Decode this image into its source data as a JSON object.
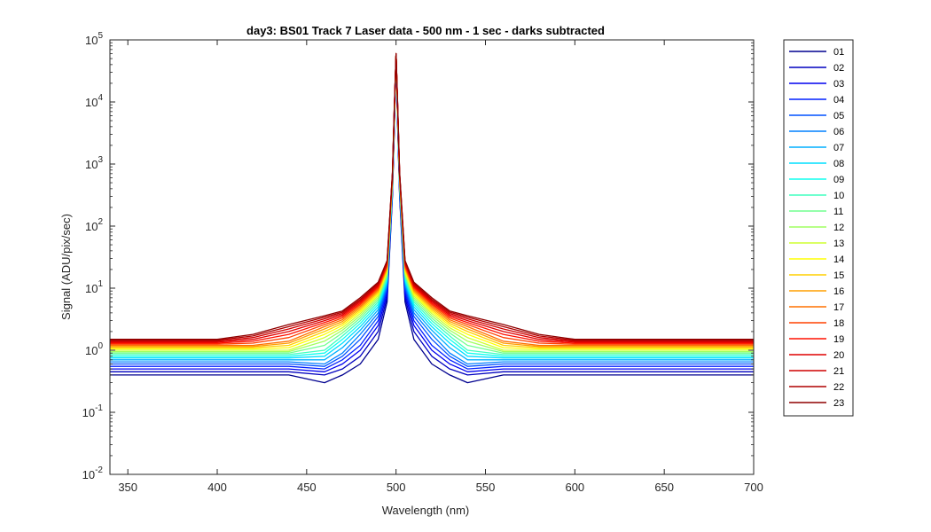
{
  "chart_data": {
    "type": "line",
    "title": "day3: BS01  Track 7 Laser data - 500 nm - 1 sec - darks subtracted",
    "xlabel": "Wavelength (nm)",
    "ylabel": "Signal (ADU/pix/sec)",
    "xlim": [
      340,
      700
    ],
    "ylim": [
      0.01,
      100000
    ],
    "yscale": "log",
    "x_ticks": [
      350,
      400,
      450,
      500,
      550,
      600,
      650,
      700
    ],
    "y_ticks": [
      {
        "value": 0.01,
        "base": "10",
        "exp": "-2"
      },
      {
        "value": 0.1,
        "base": "10",
        "exp": "-1"
      },
      {
        "value": 1,
        "base": "10",
        "exp": "0"
      },
      {
        "value": 10,
        "base": "10",
        "exp": "1"
      },
      {
        "value": 100,
        "base": "10",
        "exp": "2"
      },
      {
        "value": 1000,
        "base": "10",
        "exp": "3"
      },
      {
        "value": 10000,
        "base": "10",
        "exp": "4"
      },
      {
        "value": 100000,
        "base": "10",
        "exp": "5"
      }
    ],
    "grid": false,
    "legend_position": "outside-right",
    "x": [
      340,
      360,
      380,
      400,
      420,
      440,
      460,
      470,
      480,
      490,
      495,
      498,
      499,
      500,
      501,
      502,
      505,
      510,
      520,
      530,
      540,
      560,
      580,
      600,
      620,
      640,
      660,
      680,
      700
    ],
    "series": [
      {
        "name": "01",
        "color": "#00008f",
        "values": [
          0.4,
          0.4,
          0.4,
          0.4,
          0.4,
          0.4,
          0.3,
          0.4,
          0.6,
          1.5,
          6,
          300,
          3000,
          60000,
          3000,
          300,
          6,
          1.5,
          0.6,
          0.4,
          0.3,
          0.4,
          0.4,
          0.4,
          0.4,
          0.4,
          0.4,
          0.4,
          0.4
        ]
      },
      {
        "name": "02",
        "color": "#0000bf",
        "values": [
          0.45,
          0.45,
          0.45,
          0.45,
          0.45,
          0.45,
          0.4,
          0.5,
          0.8,
          2.0,
          7,
          320,
          3200,
          60000,
          3200,
          320,
          7,
          2.0,
          0.8,
          0.5,
          0.4,
          0.45,
          0.45,
          0.45,
          0.45,
          0.45,
          0.45,
          0.45,
          0.45
        ]
      },
      {
        "name": "03",
        "color": "#0000ef",
        "values": [
          0.5,
          0.5,
          0.5,
          0.5,
          0.5,
          0.5,
          0.45,
          0.6,
          1.0,
          2.5,
          8,
          340,
          3400,
          60000,
          3400,
          340,
          8,
          2.5,
          1.0,
          0.6,
          0.45,
          0.5,
          0.5,
          0.5,
          0.5,
          0.5,
          0.5,
          0.5,
          0.5
        ]
      },
      {
        "name": "04",
        "color": "#0020ff",
        "values": [
          0.55,
          0.55,
          0.55,
          0.55,
          0.55,
          0.55,
          0.5,
          0.7,
          1.2,
          3.0,
          9,
          360,
          3600,
          60000,
          3600,
          360,
          9,
          3.0,
          1.2,
          0.7,
          0.5,
          0.55,
          0.55,
          0.55,
          0.55,
          0.55,
          0.55,
          0.55,
          0.55
        ]
      },
      {
        "name": "05",
        "color": "#0050ff",
        "values": [
          0.6,
          0.6,
          0.6,
          0.6,
          0.6,
          0.6,
          0.55,
          0.8,
          1.5,
          3.5,
          10,
          380,
          3800,
          60000,
          3800,
          380,
          10,
          3.5,
          1.5,
          0.8,
          0.55,
          0.6,
          0.6,
          0.6,
          0.6,
          0.6,
          0.6,
          0.6,
          0.6
        ]
      },
      {
        "name": "06",
        "color": "#0080ff",
        "values": [
          0.65,
          0.65,
          0.65,
          0.65,
          0.65,
          0.65,
          0.6,
          0.9,
          1.8,
          4.0,
          11,
          400,
          4000,
          60000,
          4000,
          400,
          11,
          4.0,
          1.8,
          0.9,
          0.6,
          0.65,
          0.65,
          0.65,
          0.65,
          0.65,
          0.65,
          0.65,
          0.65
        ]
      },
      {
        "name": "07",
        "color": "#00afff",
        "values": [
          0.7,
          0.7,
          0.7,
          0.7,
          0.7,
          0.7,
          0.7,
          1.1,
          2.1,
          4.5,
          12,
          420,
          4200,
          60000,
          4200,
          420,
          12,
          4.5,
          2.1,
          1.1,
          0.7,
          0.7,
          0.7,
          0.7,
          0.7,
          0.7,
          0.7,
          0.7,
          0.7
        ]
      },
      {
        "name": "08",
        "color": "#00dfff",
        "values": [
          0.75,
          0.75,
          0.75,
          0.75,
          0.75,
          0.75,
          0.8,
          1.3,
          2.4,
          5.0,
          13,
          440,
          4400,
          60000,
          4400,
          440,
          13,
          5.0,
          2.4,
          1.3,
          0.8,
          0.75,
          0.75,
          0.75,
          0.75,
          0.75,
          0.75,
          0.75,
          0.75
        ]
      },
      {
        "name": "09",
        "color": "#10ffef",
        "values": [
          0.8,
          0.8,
          0.8,
          0.8,
          0.8,
          0.8,
          0.9,
          1.5,
          2.7,
          5.5,
          14,
          460,
          4600,
          60000,
          4600,
          460,
          14,
          5.5,
          2.7,
          1.5,
          0.9,
          0.8,
          0.8,
          0.8,
          0.8,
          0.8,
          0.8,
          0.8,
          0.8
        ]
      },
      {
        "name": "10",
        "color": "#40ffbf",
        "values": [
          0.85,
          0.85,
          0.85,
          0.85,
          0.85,
          0.85,
          1.0,
          1.7,
          3.0,
          6.0,
          15,
          480,
          4800,
          60000,
          4800,
          480,
          15,
          6.0,
          3.0,
          1.7,
          1.0,
          0.85,
          0.85,
          0.85,
          0.85,
          0.85,
          0.85,
          0.85,
          0.85
        ]
      },
      {
        "name": "11",
        "color": "#70ff8f",
        "values": [
          0.9,
          0.9,
          0.9,
          0.9,
          0.9,
          0.9,
          1.2,
          1.9,
          3.3,
          6.5,
          16,
          500,
          5000,
          60000,
          5000,
          500,
          16,
          6.5,
          3.3,
          1.9,
          1.2,
          0.9,
          0.9,
          0.9,
          0.9,
          0.9,
          0.9,
          0.9,
          0.9
        ]
      },
      {
        "name": "12",
        "color": "#9fff60",
        "values": [
          0.95,
          0.95,
          0.95,
          0.95,
          0.95,
          0.95,
          1.4,
          2.1,
          3.6,
          7.0,
          17,
          520,
          5200,
          60000,
          5200,
          520,
          17,
          7.0,
          3.6,
          2.1,
          1.4,
          0.95,
          0.95,
          0.95,
          0.95,
          0.95,
          0.95,
          0.95,
          0.95
        ]
      },
      {
        "name": "13",
        "color": "#cfff30",
        "values": [
          1.0,
          1.0,
          1.0,
          1.0,
          1.0,
          1.0,
          1.6,
          2.3,
          3.9,
          7.5,
          18,
          540,
          5400,
          60000,
          5400,
          540,
          18,
          7.5,
          3.9,
          2.3,
          1.6,
          1.0,
          1.0,
          1.0,
          1.0,
          1.0,
          1.0,
          1.0,
          1.0
        ]
      },
      {
        "name": "14",
        "color": "#ffff00",
        "values": [
          1.05,
          1.05,
          1.05,
          1.05,
          1.05,
          1.1,
          1.8,
          2.5,
          4.2,
          8.0,
          19,
          560,
          5600,
          60000,
          5600,
          560,
          19,
          8.0,
          4.2,
          2.5,
          1.8,
          1.1,
          1.05,
          1.05,
          1.05,
          1.05,
          1.05,
          1.05,
          1.05
        ]
      },
      {
        "name": "15",
        "color": "#ffcf00",
        "values": [
          1.1,
          1.1,
          1.1,
          1.1,
          1.1,
          1.2,
          2.0,
          2.7,
          4.5,
          8.5,
          20,
          580,
          5800,
          60000,
          5800,
          580,
          20,
          8.5,
          4.5,
          2.7,
          2.0,
          1.2,
          1.1,
          1.1,
          1.1,
          1.1,
          1.1,
          1.1,
          1.1
        ]
      },
      {
        "name": "16",
        "color": "#ff9f00",
        "values": [
          1.15,
          1.15,
          1.15,
          1.15,
          1.15,
          1.3,
          2.2,
          2.9,
          4.8,
          9.0,
          21,
          600,
          6000,
          60000,
          6000,
          600,
          21,
          9.0,
          4.8,
          2.9,
          2.2,
          1.3,
          1.15,
          1.15,
          1.15,
          1.15,
          1.15,
          1.15,
          1.15
        ]
      },
      {
        "name": "17",
        "color": "#ff7000",
        "values": [
          1.2,
          1.2,
          1.2,
          1.2,
          1.2,
          1.4,
          2.4,
          3.1,
          5.1,
          9.5,
          22,
          620,
          6200,
          60000,
          6200,
          620,
          22,
          9.5,
          5.1,
          3.1,
          2.4,
          1.4,
          1.2,
          1.2,
          1.2,
          1.2,
          1.2,
          1.2,
          1.2
        ]
      },
      {
        "name": "18",
        "color": "#ff4000",
        "values": [
          1.25,
          1.25,
          1.25,
          1.25,
          1.3,
          1.6,
          2.6,
          3.3,
          5.4,
          10,
          23,
          640,
          6400,
          60000,
          6400,
          640,
          23,
          10,
          5.4,
          3.3,
          2.6,
          1.6,
          1.3,
          1.25,
          1.25,
          1.25,
          1.25,
          1.25,
          1.25
        ]
      },
      {
        "name": "19",
        "color": "#ff1000",
        "values": [
          1.3,
          1.3,
          1.3,
          1.3,
          1.4,
          1.8,
          2.8,
          3.5,
          5.7,
          10.5,
          24,
          660,
          6600,
          60000,
          6600,
          660,
          24,
          10.5,
          5.7,
          3.5,
          2.8,
          1.8,
          1.4,
          1.3,
          1.3,
          1.3,
          1.3,
          1.3,
          1.3
        ]
      },
      {
        "name": "20",
        "color": "#df0000",
        "values": [
          1.35,
          1.35,
          1.35,
          1.35,
          1.5,
          2.0,
          3.0,
          3.7,
          6.0,
          11,
          25,
          680,
          6800,
          60000,
          6800,
          680,
          25,
          11,
          6.0,
          3.7,
          3.0,
          2.0,
          1.5,
          1.35,
          1.35,
          1.35,
          1.35,
          1.35,
          1.35
        ]
      },
      {
        "name": "21",
        "color": "#cf0000",
        "values": [
          1.4,
          1.4,
          1.4,
          1.4,
          1.6,
          2.2,
          3.2,
          3.9,
          6.3,
          11.5,
          26,
          700,
          7000,
          60000,
          7000,
          700,
          26,
          11.5,
          6.3,
          3.9,
          3.2,
          2.2,
          1.6,
          1.4,
          1.4,
          1.4,
          1.4,
          1.4,
          1.4
        ]
      },
      {
        "name": "22",
        "color": "#af0000",
        "values": [
          1.45,
          1.45,
          1.45,
          1.45,
          1.7,
          2.4,
          3.4,
          4.1,
          6.6,
          12,
          27,
          720,
          7200,
          60000,
          7200,
          720,
          27,
          12,
          6.6,
          4.1,
          3.4,
          2.4,
          1.7,
          1.45,
          1.45,
          1.45,
          1.45,
          1.45,
          1.45
        ]
      },
      {
        "name": "23",
        "color": "#8f0000",
        "values": [
          1.5,
          1.5,
          1.5,
          1.5,
          1.8,
          2.6,
          3.6,
          4.3,
          7.0,
          12.5,
          28,
          740,
          7400,
          60000,
          7400,
          740,
          28,
          12.5,
          7.0,
          4.3,
          3.6,
          2.6,
          1.8,
          1.5,
          1.5,
          1.5,
          1.5,
          1.5,
          1.5
        ]
      }
    ]
  }
}
